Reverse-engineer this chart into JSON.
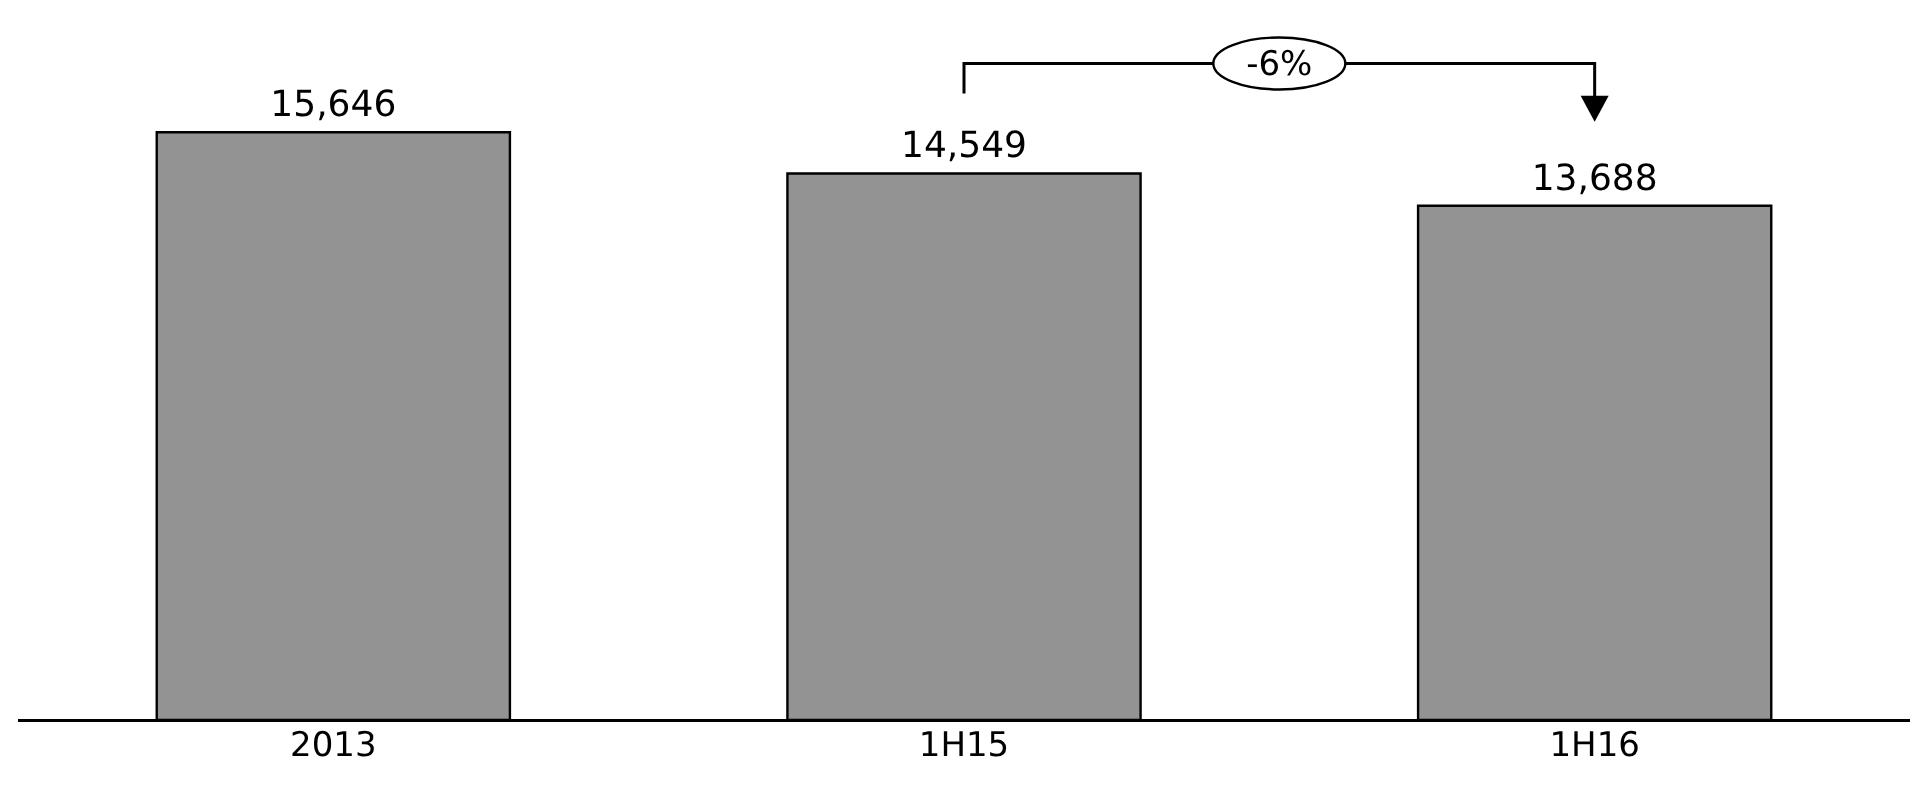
{
  "chart_data": {
    "type": "bar",
    "categories": [
      "2013",
      "1H15",
      "1H16"
    ],
    "values": [
      15646,
      14549,
      13688
    ],
    "value_labels": [
      "15,646",
      "14,549",
      "13,688"
    ],
    "color": "#939393",
    "grid": false,
    "legend": false,
    "tick_labels": "x",
    "annotations": [
      "-6%"
    ]
  }
}
